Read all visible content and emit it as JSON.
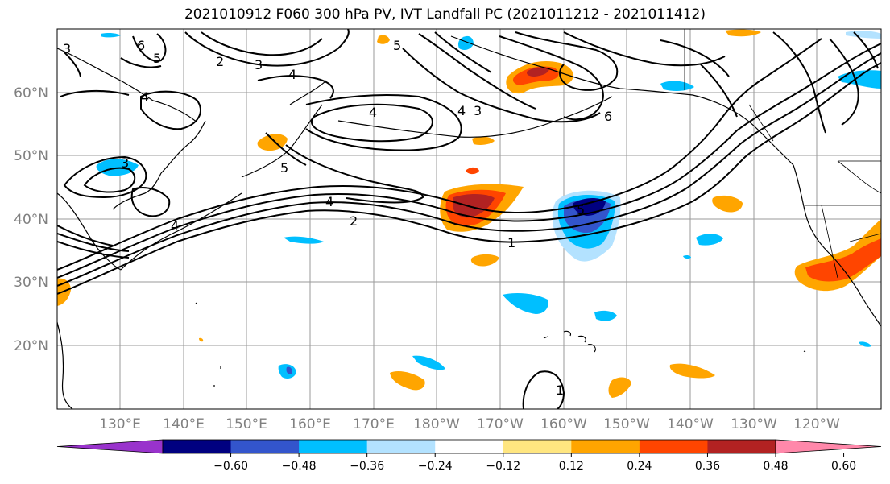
{
  "title": "2021010912 F060 300 hPa PV, IVT Landfall PC (2021011212 - 2021011412)",
  "map": {
    "lat_labels": [
      "60°N",
      "50°N",
      "40°N",
      "30°N",
      "20°N"
    ],
    "lon_labels": [
      "130°E",
      "140°E",
      "150°E",
      "160°E",
      "170°E",
      "180°W",
      "170°W",
      "160°W",
      "150°W",
      "140°W",
      "130°W",
      "120°W"
    ],
    "contour_labels": [
      "6",
      "5",
      "2",
      "3",
      "4",
      "4",
      "4",
      "3",
      "4",
      "6",
      "5",
      "4",
      "2",
      "1",
      "5",
      "3",
      "4",
      "5",
      "1",
      "3"
    ]
  },
  "colorbar": {
    "ticks": [
      "−0.60",
      "−0.48",
      "−0.36",
      "−0.24",
      "−0.12",
      "0.12",
      "0.24",
      "0.36",
      "0.48",
      "0.60"
    ],
    "colors": [
      "#9933cc",
      "#000080",
      "#3355cc",
      "#00bfff",
      "#b3e2ff",
      "#ffffff",
      "#ffe680",
      "#ffa500",
      "#ff4500",
      "#b22222",
      "#ff88aa"
    ]
  }
}
